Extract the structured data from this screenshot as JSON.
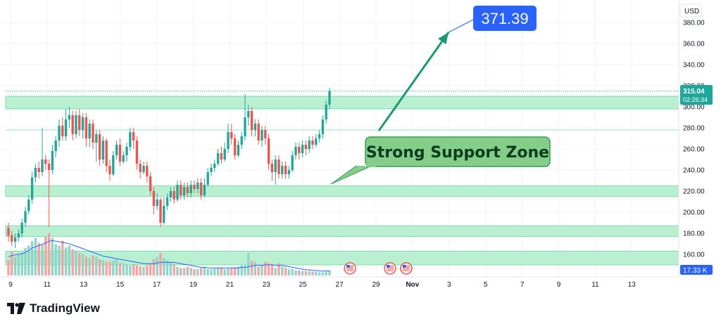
{
  "currency": "USD",
  "price_tag": {
    "price": "315.04",
    "countdown": "02:26:34"
  },
  "volume_tag": "17.33 K",
  "target_label": "371.39",
  "callout_text": "Strong Support Zone",
  "brand": "TradingView",
  "colors": {
    "up": "#26a69a",
    "down": "#ef5350",
    "zone_fill": "#b9f0d2",
    "zone_border": "#7fdcaa",
    "arrow": "#1a9a74",
    "callout_bg": "#83cf8a",
    "target_bg": "#2962ff",
    "volume_ma": "#2962ff",
    "price_tag_bg": "#1ea69a",
    "volume_tag_bg": "#2962ff"
  },
  "chart_data": {
    "type": "candlestick",
    "y_axis": {
      "min": 145,
      "max": 390,
      "ticks": [
        160,
        180,
        200,
        220,
        240,
        260,
        280,
        300,
        320,
        340,
        360,
        380
      ]
    },
    "x_axis": {
      "labels": [
        "9",
        "11",
        "13",
        "15",
        "17",
        "19",
        "21",
        "23",
        "25",
        "27",
        "29",
        "Nov",
        "3",
        "5",
        "7",
        "9",
        "11",
        "13"
      ]
    },
    "support_zones": [
      {
        "low": 298,
        "high": 310
      },
      {
        "low": 215,
        "high": 225
      },
      {
        "low": 177,
        "high": 187
      },
      {
        "low": 150,
        "high": 163
      }
    ],
    "reference_lines": [
      278
    ],
    "last_price": 315.04,
    "target_price": 371.39,
    "candles": [
      [
        185,
        178,
        190,
        172
      ],
      [
        178,
        172,
        182,
        168
      ],
      [
        172,
        176,
        180,
        166
      ],
      [
        176,
        180,
        184,
        172
      ],
      [
        180,
        190,
        194,
        176
      ],
      [
        190,
        201,
        205,
        186
      ],
      [
        201,
        212,
        216,
        198
      ],
      [
        212,
        233,
        238,
        208
      ],
      [
        233,
        242,
        246,
        228
      ],
      [
        242,
        238,
        248,
        232
      ],
      [
        238,
        250,
        280,
        234
      ],
      [
        250,
        246,
        254,
        240
      ],
      [
        246,
        240,
        250,
        186
      ],
      [
        240,
        258,
        264,
        236
      ],
      [
        258,
        268,
        272,
        252
      ],
      [
        268,
        282,
        288,
        262
      ],
      [
        282,
        272,
        290,
        268
      ],
      [
        272,
        288,
        298,
        268
      ],
      [
        288,
        292,
        300,
        280
      ],
      [
        292,
        274,
        296,
        268
      ],
      [
        274,
        292,
        296,
        270
      ],
      [
        292,
        278,
        298,
        272
      ],
      [
        278,
        290,
        294,
        270
      ],
      [
        290,
        270,
        294,
        262
      ],
      [
        270,
        284,
        288,
        262
      ],
      [
        284,
        266,
        288,
        260
      ],
      [
        266,
        274,
        278,
        248
      ],
      [
        274,
        250,
        278,
        244
      ],
      [
        250,
        268,
        272,
        246
      ],
      [
        268,
        244,
        270,
        238
      ],
      [
        244,
        236,
        250,
        230
      ],
      [
        236,
        254,
        258,
        234
      ],
      [
        254,
        264,
        268,
        250
      ],
      [
        264,
        248,
        270,
        244
      ],
      [
        248,
        254,
        258,
        246
      ],
      [
        254,
        262,
        266,
        248
      ],
      [
        262,
        276,
        280,
        258
      ],
      [
        276,
        268,
        280,
        260
      ],
      [
        268,
        246,
        272,
        240
      ],
      [
        246,
        238,
        250,
        232
      ],
      [
        238,
        244,
        248,
        236
      ],
      [
        244,
        234,
        248,
        228
      ],
      [
        234,
        220,
        238,
        216
      ],
      [
        220,
        206,
        224,
        198
      ],
      [
        206,
        212,
        218,
        202
      ],
      [
        212,
        190,
        214,
        186
      ],
      [
        190,
        206,
        214,
        188
      ],
      [
        206,
        214,
        218,
        202
      ],
      [
        214,
        220,
        224,
        210
      ],
      [
        220,
        212,
        224,
        208
      ],
      [
        212,
        226,
        230,
        210
      ],
      [
        226,
        216,
        230,
        212
      ],
      [
        216,
        224,
        228,
        212
      ],
      [
        224,
        218,
        228,
        214
      ],
      [
        218,
        226,
        230,
        214
      ],
      [
        226,
        222,
        230,
        218
      ],
      [
        222,
        228,
        232,
        218
      ],
      [
        228,
        216,
        232,
        212
      ],
      [
        216,
        226,
        232,
        214
      ],
      [
        226,
        238,
        242,
        224
      ],
      [
        238,
        242,
        246,
        234
      ],
      [
        242,
        246,
        250,
        238
      ],
      [
        246,
        256,
        260,
        244
      ],
      [
        256,
        250,
        262,
        246
      ],
      [
        250,
        260,
        266,
        248
      ],
      [
        260,
        276,
        284,
        256
      ],
      [
        276,
        270,
        284,
        264
      ],
      [
        270,
        254,
        274,
        250
      ],
      [
        254,
        264,
        268,
        252
      ],
      [
        264,
        272,
        276,
        260
      ],
      [
        272,
        290,
        312,
        268
      ],
      [
        290,
        296,
        302,
        282
      ],
      [
        296,
        278,
        300,
        272
      ],
      [
        278,
        284,
        288,
        272
      ],
      [
        284,
        268,
        288,
        264
      ],
      [
        268,
        278,
        282,
        262
      ],
      [
        278,
        270,
        282,
        264
      ],
      [
        270,
        246,
        274,
        240
      ],
      [
        246,
        238,
        250,
        230
      ],
      [
        238,
        250,
        254,
        226
      ],
      [
        250,
        236,
        254,
        232
      ],
      [
        236,
        244,
        248,
        232
      ],
      [
        244,
        236,
        248,
        232
      ],
      [
        236,
        240,
        244,
        232
      ],
      [
        240,
        254,
        258,
        238
      ],
      [
        254,
        262,
        266,
        250
      ],
      [
        262,
        256,
        266,
        250
      ],
      [
        256,
        264,
        268,
        252
      ],
      [
        264,
        260,
        268,
        254
      ],
      [
        260,
        268,
        272,
        256
      ],
      [
        268,
        264,
        272,
        260
      ],
      [
        264,
        270,
        274,
        262
      ],
      [
        270,
        274,
        278,
        266
      ],
      [
        274,
        288,
        292,
        270
      ],
      [
        288,
        302,
        306,
        284
      ],
      [
        302,
        315.04,
        318,
        298
      ]
    ],
    "volumes": [
      25,
      38,
      30,
      33,
      36,
      44,
      48,
      55,
      60,
      52,
      50,
      62,
      68,
      60,
      50,
      48,
      56,
      45,
      48,
      42,
      40,
      36,
      34,
      30,
      28,
      32,
      30,
      26,
      24,
      22,
      22,
      24,
      26,
      20,
      20,
      18,
      16,
      18,
      16,
      15,
      14,
      16,
      18,
      26,
      30,
      36,
      28,
      24,
      22,
      18,
      14,
      12,
      12,
      14,
      12,
      10,
      10,
      12,
      14,
      10,
      10,
      11,
      12,
      13,
      10,
      11,
      12,
      13,
      14,
      16,
      16,
      36,
      24,
      22,
      14,
      16,
      22,
      20,
      18,
      12,
      20,
      14,
      12,
      10,
      10,
      8,
      8,
      7,
      7,
      7,
      6,
      6,
      5,
      5,
      6,
      8
    ],
    "volume_ma": [
      30,
      32,
      33,
      34,
      35,
      37,
      40,
      44,
      46,
      48,
      50,
      52,
      55,
      56,
      55,
      54,
      53,
      52,
      51,
      49,
      47,
      45,
      43,
      41,
      39,
      37,
      35,
      33,
      31,
      30,
      29,
      28,
      27,
      26,
      25,
      24,
      23,
      22,
      21,
      20,
      19,
      19,
      19,
      19,
      20,
      21,
      21,
      21,
      21,
      21,
      20,
      19,
      18,
      17,
      16,
      15,
      14,
      13,
      13,
      12,
      12,
      12,
      12,
      12,
      12,
      12,
      12,
      12,
      12,
      13,
      13,
      14,
      15,
      16,
      16,
      16,
      17,
      17,
      17,
      16,
      16,
      16,
      15,
      14,
      13,
      12,
      11,
      10,
      9,
      9,
      8,
      8,
      7,
      7,
      7,
      7
    ],
    "volume_max": 70,
    "events_at_x_labels": [
      "27",
      "29",
      "Nov"
    ]
  }
}
